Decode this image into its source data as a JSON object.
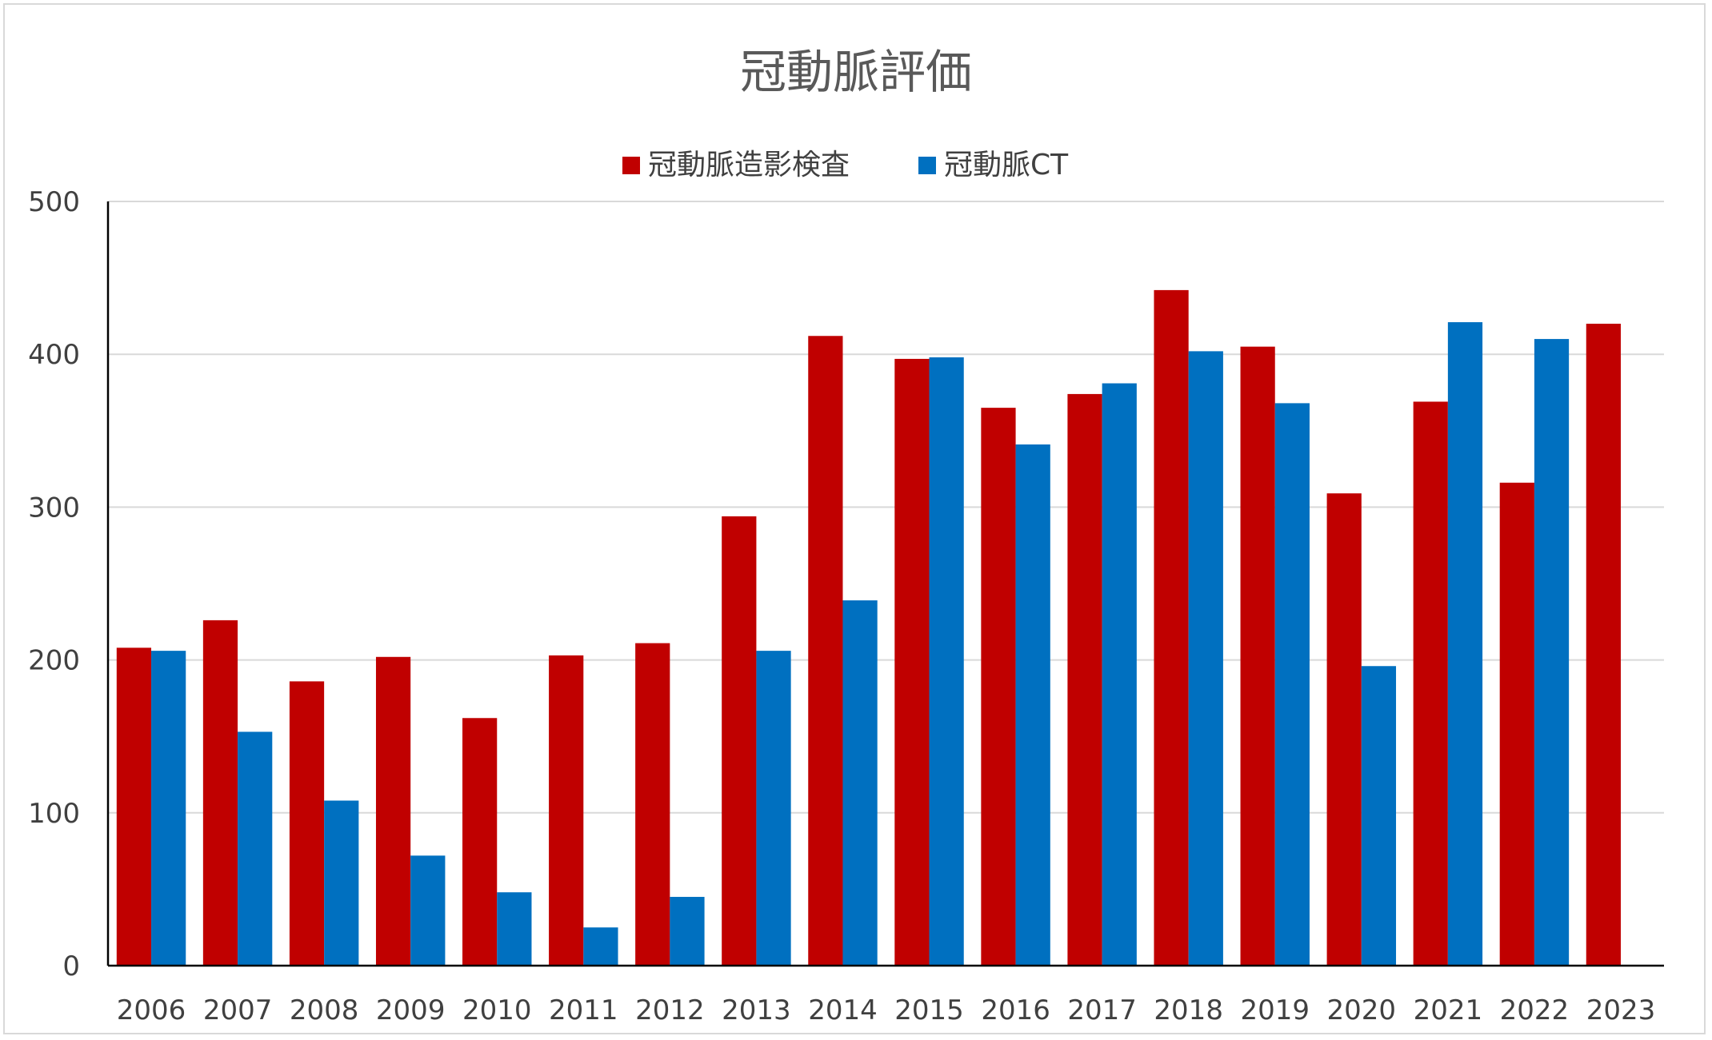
{
  "chart_data": {
    "type": "bar",
    "title": "冠動脈評価",
    "xlabel": "",
    "ylabel": "",
    "ylim": [
      0,
      500
    ],
    "yticks": [
      0,
      100,
      200,
      300,
      400,
      500
    ],
    "grid": true,
    "legend_position": "top",
    "categories": [
      "2006",
      "2007",
      "2008",
      "2009",
      "2010",
      "2011",
      "2012",
      "2013",
      "2014",
      "2015",
      "2016",
      "2017",
      "2018",
      "2019",
      "2020",
      "2021",
      "2022",
      "2023"
    ],
    "series": [
      {
        "name": "冠動脈造影検査",
        "color": "#c00000",
        "values": [
          208,
          226,
          186,
          202,
          162,
          203,
          211,
          294,
          412,
          397,
          365,
          374,
          442,
          405,
          309,
          369,
          316,
          420
        ]
      },
      {
        "name": "冠動脈CT",
        "color": "#0070c0",
        "values": [
          206,
          153,
          108,
          72,
          48,
          25,
          45,
          206,
          239,
          398,
          341,
          381,
          402,
          368,
          196,
          421,
          410,
          null
        ]
      }
    ]
  }
}
